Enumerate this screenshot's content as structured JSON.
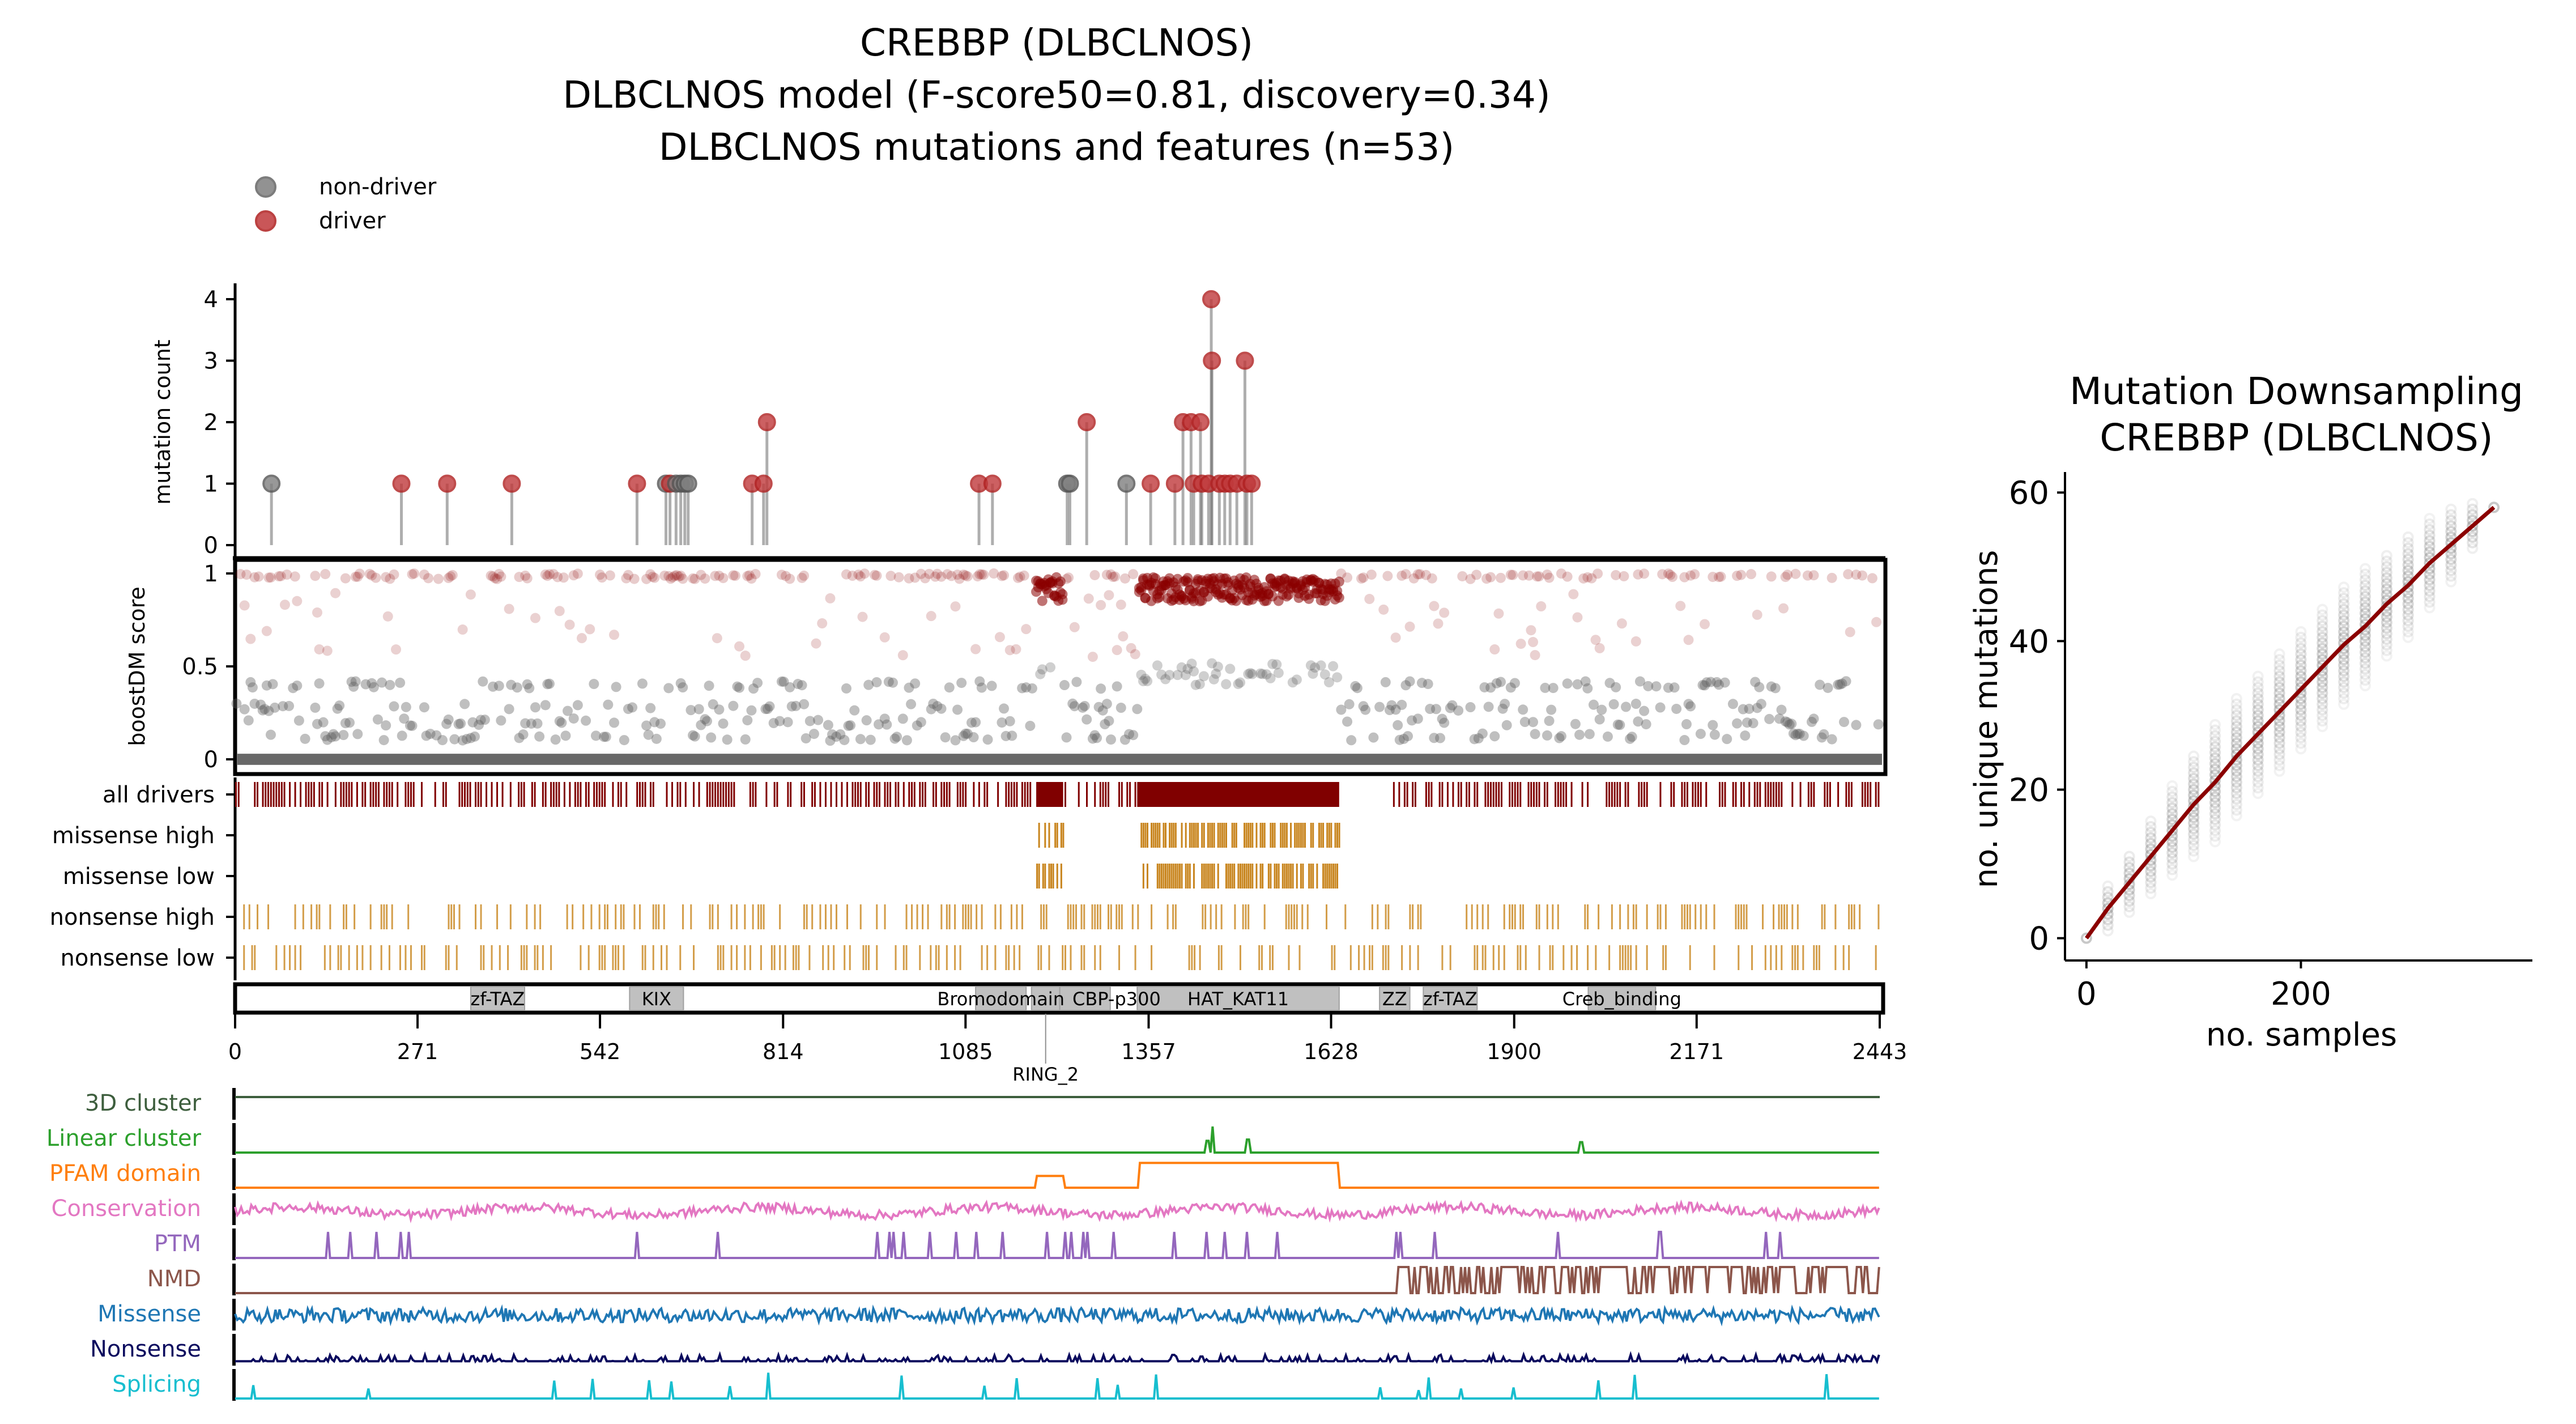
{
  "figure": {
    "title_lines": [
      "CREBBP (DLBCLNOS)",
      "DLBCLNOS model (F-score50=0.81, discovery=0.34)",
      "DLBCLNOS mutations and features (n=53)"
    ],
    "legend": [
      {
        "label": "non-driver",
        "color": "#808080"
      },
      {
        "label": "driver",
        "color": "#c0393b"
      }
    ]
  },
  "chart_data": [
    {
      "type": "scatter",
      "name": "mutation-count-lollipop",
      "ylabel": "mutation count",
      "ylim": [
        0,
        4
      ],
      "yticks": [
        "0",
        "1",
        "2",
        "3",
        "4"
      ],
      "xlim": [
        0,
        2443
      ],
      "points": [
        {
          "pos": 54,
          "count": 1,
          "driver": false
        },
        {
          "pos": 247,
          "count": 1,
          "driver": true
        },
        {
          "pos": 315,
          "count": 1,
          "driver": true
        },
        {
          "pos": 411,
          "count": 1,
          "driver": true
        },
        {
          "pos": 597,
          "count": 1,
          "driver": true
        },
        {
          "pos": 640,
          "count": 1,
          "driver": false
        },
        {
          "pos": 646,
          "count": 1,
          "driver": true
        },
        {
          "pos": 655,
          "count": 1,
          "driver": false
        },
        {
          "pos": 662,
          "count": 1,
          "driver": false
        },
        {
          "pos": 668,
          "count": 1,
          "driver": false
        },
        {
          "pos": 673,
          "count": 1,
          "driver": false
        },
        {
          "pos": 768,
          "count": 1,
          "driver": true
        },
        {
          "pos": 785,
          "count": 1,
          "driver": true
        },
        {
          "pos": 790,
          "count": 2,
          "driver": true
        },
        {
          "pos": 1105,
          "count": 1,
          "driver": true
        },
        {
          "pos": 1125,
          "count": 1,
          "driver": true
        },
        {
          "pos": 1236,
          "count": 1,
          "driver": false
        },
        {
          "pos": 1240,
          "count": 1,
          "driver": false
        },
        {
          "pos": 1265,
          "count": 2,
          "driver": true
        },
        {
          "pos": 1324,
          "count": 1,
          "driver": false
        },
        {
          "pos": 1360,
          "count": 1,
          "driver": true
        },
        {
          "pos": 1396,
          "count": 1,
          "driver": true
        },
        {
          "pos": 1408,
          "count": 2,
          "driver": true
        },
        {
          "pos": 1420,
          "count": 2,
          "driver": true
        },
        {
          "pos": 1424,
          "count": 1,
          "driver": true
        },
        {
          "pos": 1434,
          "count": 2,
          "driver": true
        },
        {
          "pos": 1436,
          "count": 1,
          "driver": true
        },
        {
          "pos": 1446,
          "count": 1,
          "driver": true
        },
        {
          "pos": 1450,
          "count": 4,
          "driver": true
        },
        {
          "pos": 1451,
          "count": 3,
          "driver": true
        },
        {
          "pos": 1462,
          "count": 1,
          "driver": true
        },
        {
          "pos": 1470,
          "count": 1,
          "driver": true
        },
        {
          "pos": 1478,
          "count": 1,
          "driver": true
        },
        {
          "pos": 1488,
          "count": 1,
          "driver": true
        },
        {
          "pos": 1500,
          "count": 3,
          "driver": true
        },
        {
          "pos": 1503,
          "count": 1,
          "driver": true
        },
        {
          "pos": 1510,
          "count": 1,
          "driver": true
        }
      ]
    },
    {
      "type": "scatter",
      "name": "boostdm-score",
      "ylabel": "boostDM score",
      "ylim": [
        0,
        1
      ],
      "yticks": [
        "0",
        "0.5",
        "1"
      ],
      "xlim": [
        0,
        2443
      ],
      "description": "in-silico saturation mutagenesis scores; red = predicted driver (score >= 0.5), gray = non-driver",
      "driver_dense_regions": [
        [
          1190,
          1230
        ],
        [
          1342,
          1640
        ]
      ],
      "driver_color": "#8b0000",
      "nondriver_color": "#606060"
    },
    {
      "type": "table",
      "name": "driver-tracks",
      "rows": [
        "all drivers",
        "missense high",
        "missense low",
        "nonsense high",
        "nonsense low"
      ],
      "all_drivers_color": "#800000",
      "other_color": "#c8841c",
      "dense_segments": {
        "all drivers": [
          [
            1190,
            1230
          ],
          [
            1342,
            1640
          ]
        ],
        "missense high": [
          [
            1190,
            1230
          ],
          [
            1342,
            1640
          ]
        ],
        "missense low": [
          [
            1190,
            1230
          ],
          [
            1342,
            1640
          ]
        ]
      }
    },
    {
      "type": "bar",
      "name": "protein-domains",
      "xlim": [
        0,
        2443
      ],
      "xticks": [
        "0",
        "271",
        "542",
        "814",
        "1085",
        "1357",
        "1628",
        "1900",
        "2171",
        "2443"
      ],
      "domains": [
        {
          "label": "zf-TAZ",
          "start": 350,
          "end": 430
        },
        {
          "label": "KIX",
          "start": 586,
          "end": 666
        },
        {
          "label": "Bromodomain",
          "start": 1100,
          "end": 1175
        },
        {
          "label": "RING_2",
          "start": 1183,
          "end": 1225
        },
        {
          "label": "CBP-p300",
          "start": 1225,
          "end": 1300
        },
        {
          "label": "HAT_KAT11",
          "start": 1340,
          "end": 1640
        },
        {
          "label": "ZZ",
          "start": 1700,
          "end": 1745
        },
        {
          "label": "zf-TAZ",
          "start": 1765,
          "end": 1845
        },
        {
          "label": "Creb_binding",
          "start": 2010,
          "end": 2110
        }
      ]
    },
    {
      "type": "line",
      "name": "feature-tracks",
      "tracks": [
        {
          "label": "3D cluster",
          "color": "#3d5e3d"
        },
        {
          "label": "Linear cluster",
          "color": "#2ca02c"
        },
        {
          "label": "PFAM domain",
          "color": "#ff7f0e"
        },
        {
          "label": "Conservation",
          "color": "#e377c2"
        },
        {
          "label": "PTM",
          "color": "#9467bd"
        },
        {
          "label": "NMD",
          "color": "#8c564b"
        },
        {
          "label": "Missense",
          "color": "#1f77b4"
        },
        {
          "label": "Nonsense",
          "color": "#0a0a5e"
        },
        {
          "label": "Splicing",
          "color": "#17becf"
        }
      ],
      "linear_cluster_peaks": [
        1445,
        1452,
        1505,
        2000
      ],
      "pfam_steps": [
        [
          1190,
          1230
        ],
        [
          1342,
          1640
        ]
      ],
      "nmd_start": 1722
    },
    {
      "type": "line",
      "name": "mutation-downsampling",
      "title_lines": [
        "Mutation Downsampling",
        "CREBBP (DLBCLNOS)"
      ],
      "xlabel": "no. samples",
      "ylabel": "no. unique mutations",
      "xlim": [
        -20,
        400
      ],
      "ylim": [
        -3,
        62
      ],
      "xticks": [
        "0",
        "200"
      ],
      "yticks": [
        "0",
        "20",
        "40",
        "60"
      ],
      "x": [
        0,
        20,
        40,
        60,
        80,
        100,
        120,
        140,
        160,
        180,
        200,
        220,
        240,
        260,
        280,
        300,
        320,
        340,
        360,
        380
      ],
      "values": [
        0,
        4,
        7.5,
        11,
        14.5,
        18,
        21,
        24.5,
        27.5,
        30.5,
        33.5,
        36.5,
        39.5,
        42,
        45,
        47.5,
        50.5,
        53,
        55.5,
        58
      ],
      "spread": [
        0,
        3,
        4,
        5,
        6,
        7,
        8,
        8,
        8,
        8,
        8,
        8,
        8,
        8,
        7,
        7,
        6,
        5,
        3,
        0
      ],
      "line_color": "#8b0000",
      "point_color": "#808080"
    }
  ]
}
